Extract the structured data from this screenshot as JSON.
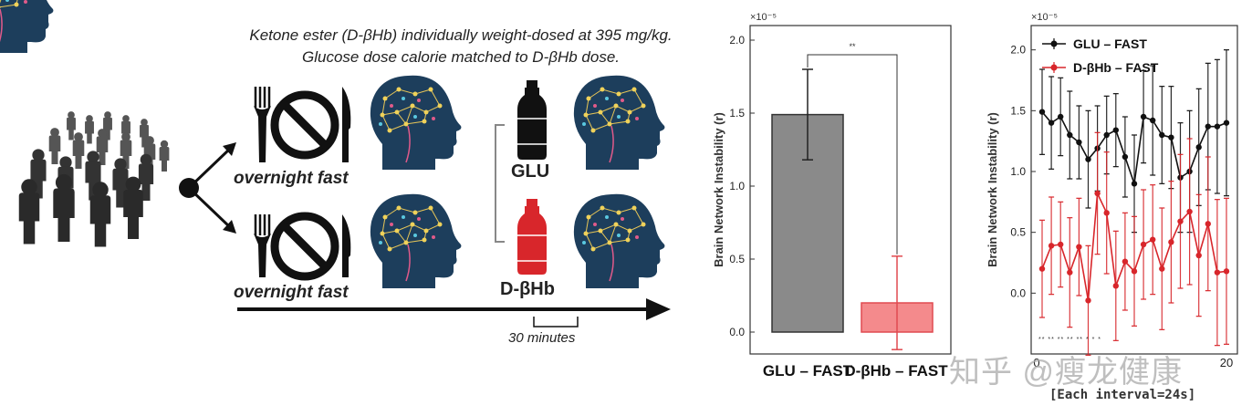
{
  "caption": {
    "line1": "Ketone ester (D-βHb) individually weight-dosed at 395 mg/kg.",
    "line2": "Glucose dose calorie matched to D-βHb dose."
  },
  "protocol": {
    "fast_label_top": "overnight fast",
    "fast_label_bottom": "overnight fast",
    "drink_top": "GLU",
    "drink_bottom": "D-βHb",
    "interval_label": "30 minutes"
  },
  "colors": {
    "glu": "#111111",
    "dbhb": "#d8262b",
    "bar_glu": "#8a8a8a",
    "bar_dbhb": "#f48a8c",
    "head": "#1d3e5c"
  },
  "chart_data": [
    {
      "type": "bar",
      "ylabel": "Brain Network Instability (r)",
      "scale_label": "×10⁻⁵",
      "ylim": [
        -0.15,
        2.1
      ],
      "yticks": [
        "0.0",
        "0.5",
        "1.0",
        "1.5",
        "2.0"
      ],
      "categories": [
        "GLU – FAST",
        "D-βHb – FAST"
      ],
      "values": [
        1.49,
        0.2
      ],
      "errors": [
        0.31,
        0.32
      ],
      "significance": "**"
    },
    {
      "type": "line",
      "ylabel": "Brain Network Instability (r)",
      "scale_label": "×10⁻⁵",
      "ylim": [
        -0.5,
        2.2
      ],
      "yticks": [
        "0.0",
        "0.5",
        "1.0",
        "1.5",
        "2.0"
      ],
      "xticks": [
        "0",
        "20"
      ],
      "xlabel_visible": "[Each interval=24s]",
      "series": [
        {
          "name": "GLU – FAST",
          "values": [
            1.49,
            1.4,
            1.45,
            1.3,
            1.24,
            1.1,
            1.19,
            1.3,
            1.34,
            1.12,
            0.9,
            1.45,
            1.42,
            1.3,
            1.28,
            0.95,
            1.0,
            1.2,
            1.37,
            1.37,
            1.4
          ],
          "errors": [
            0.35,
            0.38,
            0.32,
            0.36,
            0.3,
            0.4,
            0.35,
            0.32,
            0.3,
            0.33,
            0.4,
            0.38,
            0.45,
            0.4,
            0.42,
            0.45,
            0.5,
            0.48,
            0.52,
            0.55,
            0.6
          ]
        },
        {
          "name": "D-βHb – FAST",
          "values": [
            0.2,
            0.39,
            0.4,
            0.17,
            0.38,
            -0.06,
            0.82,
            0.66,
            0.06,
            0.26,
            0.18,
            0.4,
            0.44,
            0.2,
            0.42,
            0.59,
            0.67,
            0.31,
            0.57,
            0.17,
            0.18
          ],
          "errors": [
            0.4,
            0.4,
            0.35,
            0.45,
            0.4,
            0.45,
            0.5,
            0.5,
            0.45,
            0.4,
            0.45,
            0.45,
            0.45,
            0.5,
            0.5,
            0.55,
            0.6,
            0.5,
            0.55,
            0.6,
            0.6
          ]
        }
      ],
      "significance_marks": "** ** ** ** ** * * *"
    }
  ],
  "watermark": "知乎 @瘦龙健康"
}
